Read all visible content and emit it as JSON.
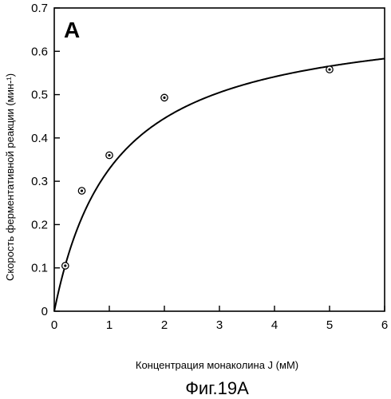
{
  "chart_data": {
    "type": "scatter",
    "panel_label": "A",
    "xlabel": "Концентрация монаколина J (мМ)",
    "ylabel": "Скорость ферментативной реакции (мин-¹)",
    "caption": "Фиг.19А",
    "xlim": [
      0,
      6
    ],
    "ylim": [
      0,
      0.7
    ],
    "x_ticks": [
      0,
      1,
      2,
      3,
      4,
      5,
      6
    ],
    "y_ticks": [
      0,
      0.1,
      0.2,
      0.3,
      0.4,
      0.5,
      0.6,
      0.7
    ],
    "x_tick_labels": [
      "0",
      "1",
      "2",
      "3",
      "4",
      "5",
      "6"
    ],
    "y_tick_labels": [
      "0",
      "0.1",
      "0.2",
      "0.3",
      "0.4",
      "0.5",
      "0.6",
      "0.7"
    ],
    "grid": false,
    "series": [
      {
        "kind": "points",
        "x": [
          0.2,
          0.5,
          1.0,
          2.0,
          5.0
        ],
        "y": [
          0.105,
          0.278,
          0.36,
          0.493,
          0.558
        ]
      },
      {
        "kind": "fit-curve",
        "model": "michaelis-menten",
        "vmax": 0.69,
        "km": 1.1
      }
    ]
  }
}
